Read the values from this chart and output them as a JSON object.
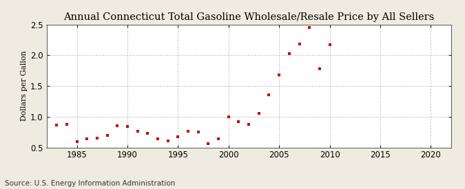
{
  "title": "Annual Connecticut Total Gasoline Wholesale/Resale Price by All Sellers",
  "ylabel": "Dollars per Gallon",
  "source": "Source: U.S. Energy Information Administration",
  "fig_background_color": "#f0ebe0",
  "plot_background_color": "#ffffff",
  "marker_color": "#cc0000",
  "years": [
    1983,
    1984,
    1985,
    1986,
    1987,
    1988,
    1989,
    1990,
    1991,
    1992,
    1993,
    1994,
    1995,
    1996,
    1997,
    1998,
    1999,
    2000,
    2001,
    2002,
    2003,
    2004,
    2005,
    2006,
    2007,
    2008,
    2009,
    2010
  ],
  "values": [
    0.86,
    0.88,
    0.6,
    0.64,
    0.65,
    0.7,
    0.85,
    0.84,
    0.76,
    0.73,
    0.64,
    0.61,
    0.67,
    0.76,
    0.75,
    0.56,
    0.64,
    1.0,
    0.92,
    0.87,
    1.05,
    1.36,
    1.68,
    2.03,
    2.18,
    2.45,
    1.78,
    2.17
  ],
  "xlim": [
    1982,
    2022
  ],
  "ylim": [
    0.5,
    2.5
  ],
  "xticks": [
    1985,
    1990,
    1995,
    2000,
    2005,
    2010,
    2015,
    2020
  ],
  "yticks": [
    0.5,
    1.0,
    1.5,
    2.0,
    2.5
  ],
  "title_fontsize": 10.5,
  "label_fontsize": 8,
  "tick_fontsize": 8.5,
  "source_fontsize": 7.5,
  "grid_color": "#aaaaaa",
  "spine_color": "#555555"
}
